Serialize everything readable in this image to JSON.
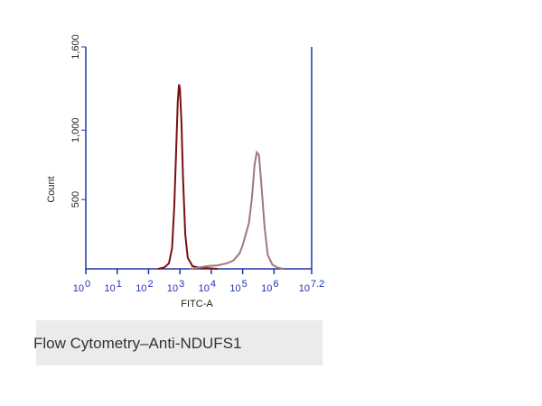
{
  "chart_data": {
    "type": "line",
    "x_label": "FITC-A",
    "y_label": "Count",
    "x_tick_base": "10",
    "xlim": [
      0,
      7.2
    ],
    "xticks": [
      0,
      1,
      2,
      3,
      4,
      5,
      6,
      7.2
    ],
    "ylim": [
      0,
      1600
    ],
    "yticks": [
      500,
      {
        "value": 1000,
        "label": "1,000"
      },
      {
        "value": 1600,
        "label": "1,600"
      }
    ],
    "axis_color": "#2233aa",
    "series": [
      {
        "color": "#7a1010",
        "x": [
          2.3,
          2.5,
          2.65,
          2.75,
          2.82,
          2.88,
          2.93,
          2.97,
          3.0,
          3.05,
          3.1,
          3.17,
          3.25,
          3.4,
          3.6,
          3.9,
          4.2
        ],
        "values": [
          0,
          10,
          40,
          150,
          450,
          850,
          1200,
          1330,
          1300,
          1050,
          650,
          250,
          80,
          20,
          10,
          5,
          0
        ]
      },
      {
        "color": "#a07878",
        "x": [
          3.3,
          3.6,
          3.9,
          4.2,
          4.5,
          4.7,
          4.9,
          5.0,
          5.1,
          5.2,
          5.3,
          5.38,
          5.45,
          5.52,
          5.6,
          5.7,
          5.8,
          5.95,
          6.1,
          6.3
        ],
        "values": [
          0,
          10,
          20,
          25,
          40,
          60,
          110,
          170,
          250,
          330,
          520,
          750,
          840,
          820,
          600,
          300,
          100,
          30,
          10,
          0
        ]
      }
    ]
  },
  "caption": "Flow Cytometry–Anti-NDUFS1"
}
